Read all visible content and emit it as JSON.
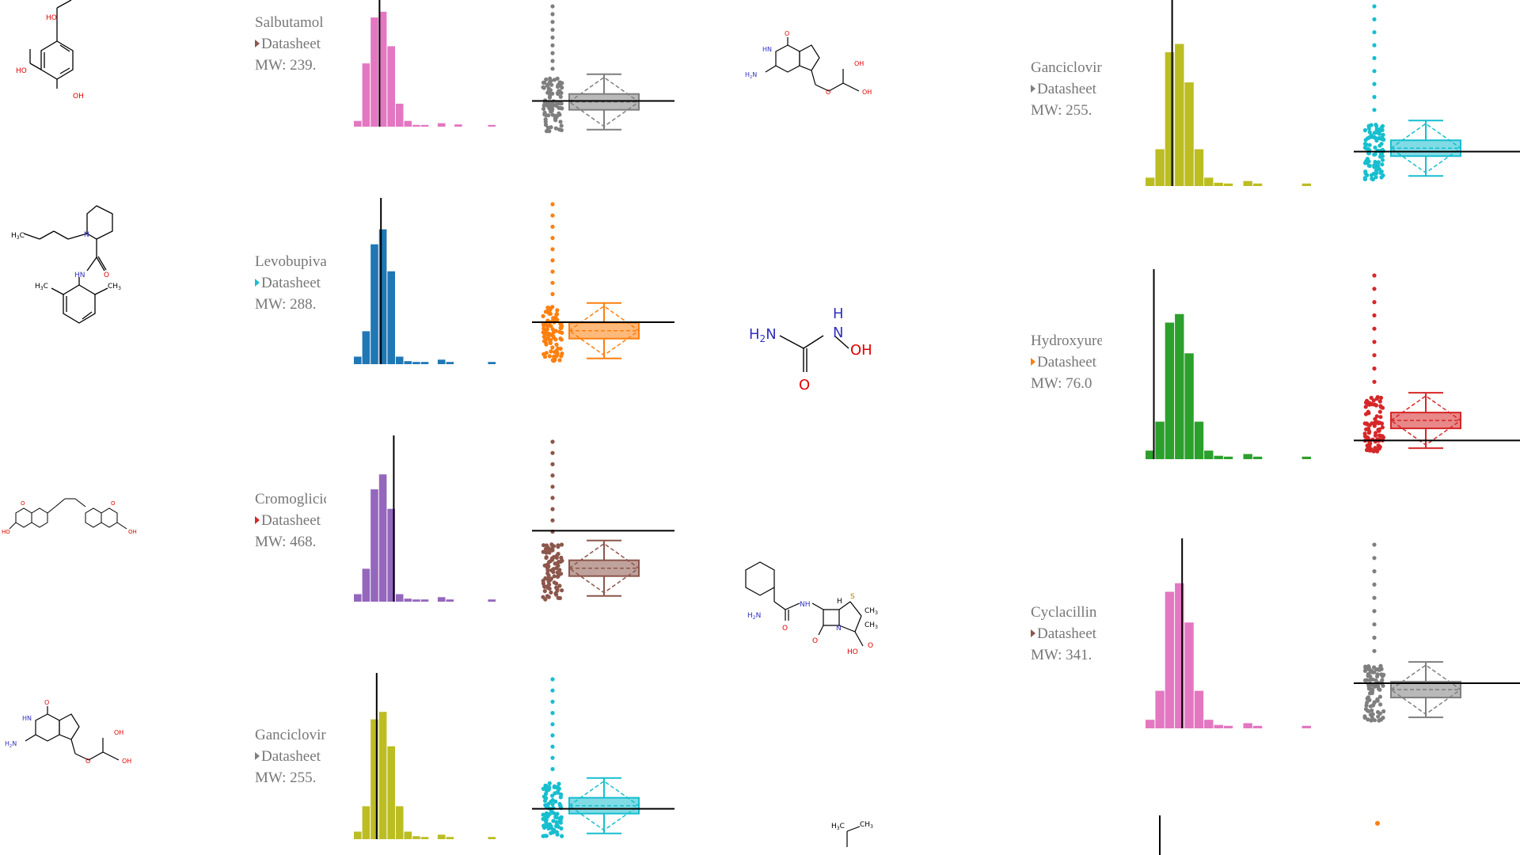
{
  "entries": [
    {
      "name": "Salbutamol",
      "datasheet_label": "Datasheet",
      "mw_text": "MW: 239.",
      "arrow_color": "#8c564b",
      "hist_color": "#e377c2",
      "swarm_color": "#7f7f7f",
      "hist_values": [
        0.05,
        0.55,
        0.95,
        1.0,
        0.7,
        0.2,
        0.05,
        0.015,
        0.015,
        0,
        0.03,
        0,
        0.02,
        0,
        0,
        0,
        0.015
      ],
      "hist_marker": 0.18,
      "swarm_marker": 0.15,
      "molecule": "salbutamol"
    },
    {
      "name": "Levobupivacaine",
      "datasheet_label": "Datasheet",
      "mw_text": "MW: 288.",
      "arrow_color": "#17becf",
      "hist_color": "#1f77b4",
      "swarm_color": "#ff7f0e",
      "hist_values": [
        0.05,
        0.22,
        0.8,
        0.9,
        0.62,
        0.05,
        0.02,
        0.015,
        0.015,
        0,
        0.03,
        0.015,
        0,
        0,
        0,
        0,
        0.015
      ],
      "hist_marker": 0.19,
      "swarm_marker": 0.2,
      "molecule": "levobupivacaine"
    },
    {
      "name": "Cromoglicic acid",
      "datasheet_label": "Datasheet",
      "mw_text": "MW: 468.",
      "arrow_color": "#d62728",
      "hist_color": "#9467bd",
      "swarm_color": "#8c564b",
      "hist_values": [
        0.05,
        0.22,
        0.75,
        0.85,
        0.62,
        0.05,
        0.02,
        0.015,
        0.015,
        0,
        0.03,
        0.015,
        0,
        0,
        0,
        0,
        0.015
      ],
      "hist_marker": 0.28,
      "swarm_marker": 0.4,
      "molecule": "cromoglicic"
    },
    {
      "name": "Ganciclovir",
      "datasheet_label": "Datasheet",
      "mw_text": "MW: 255.",
      "arrow_color": "#7f7f7f",
      "hist_color": "#bcbd22",
      "swarm_color": "#17becf",
      "hist_values": [
        0.05,
        0.22,
        0.8,
        0.85,
        0.62,
        0.22,
        0.05,
        0.02,
        0.015,
        0,
        0.03,
        0.015,
        0,
        0,
        0,
        0,
        0.015
      ],
      "hist_marker": 0.16,
      "swarm_marker": 0.12,
      "molecule": "ganciclovir"
    },
    {
      "name": "Ganciclovir",
      "datasheet_label": "Datasheet",
      "mw_text": "MW: 255.",
      "arrow_color": "#7f7f7f",
      "hist_color": "#bcbd22",
      "swarm_color": "#17becf",
      "hist_values": [
        0.05,
        0.22,
        0.8,
        0.85,
        0.62,
        0.22,
        0.05,
        0.02,
        0.015,
        0,
        0.03,
        0.015,
        0,
        0,
        0,
        0,
        0.015
      ],
      "hist_marker": 0.16,
      "swarm_marker": 0.12,
      "molecule": "ganciclovir"
    },
    {
      "name": "Hydroxyurea",
      "datasheet_label": "Datasheet",
      "mw_text": "MW: 76.0",
      "arrow_color": "#ff7f0e",
      "hist_color": "#2ca02c",
      "swarm_color": "#d62728",
      "hist_values": [
        0.05,
        0.22,
        0.8,
        0.85,
        0.62,
        0.22,
        0.05,
        0.02,
        0.015,
        0,
        0.03,
        0.015,
        0,
        0,
        0,
        0,
        0.015
      ],
      "hist_marker": 0.05,
      "swarm_marker": 0.02,
      "molecule": "hydroxyurea"
    },
    {
      "name": "Cyclacillin",
      "datasheet_label": "Datasheet",
      "mw_text": "MW: 341.",
      "arrow_color": "#8c564b",
      "hist_color": "#e377c2",
      "swarm_color": "#7f7f7f",
      "hist_values": [
        0.05,
        0.22,
        0.8,
        0.85,
        0.62,
        0.22,
        0.05,
        0.02,
        0.015,
        0,
        0.03,
        0.015,
        0,
        0,
        0,
        0,
        0.015
      ],
      "hist_marker": 0.22,
      "swarm_marker": 0.18,
      "molecule": "cyclacillin"
    }
  ],
  "molecule_labels": {
    "ho": "HO",
    "oh": "OH",
    "ch3": "CH",
    "h3c": "H",
    "hn": "HN",
    "nh": "NH",
    "h2n": "H",
    "o": "O",
    "n": "N",
    "s": "S",
    "h": "H"
  },
  "molecule_label_parts": {
    "methyl_subscript": "3",
    "amine_subscript": "2",
    "methyl_prefix_c": "C",
    "amine_suffix_n": "N"
  },
  "partial_bottom": {
    "hist_color": "#000000",
    "swarm_color": "#ff7f0e"
  }
}
